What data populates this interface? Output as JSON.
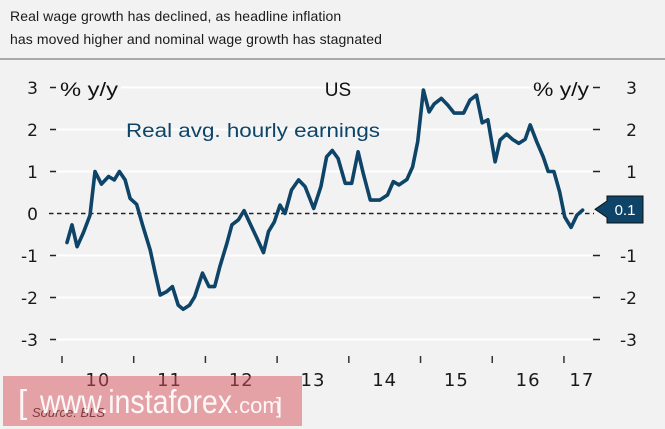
{
  "header": {
    "title_line1": "Real wage growth has declined, as headline inflation",
    "title_line2": "has moved higher and nominal wage growth has stagnated"
  },
  "chart_data": {
    "type": "line",
    "title": "US",
    "ylabel_left": "% y/y",
    "ylabel_right": "% y/y",
    "xlabel": "",
    "ylim": [
      -3,
      3
    ],
    "xlim": [
      2010,
      2017.5
    ],
    "yticks": [
      3,
      2,
      1,
      0,
      -1,
      -2,
      -3
    ],
    "ytick_labels": [
      "3",
      "2",
      "1",
      "0",
      "-1",
      "-2",
      "-3"
    ],
    "xticks": [
      2010,
      2011,
      2012,
      2013,
      2014,
      2015,
      2016,
      2017
    ],
    "xtick_labels": [
      "10",
      "11",
      "12",
      "13",
      "14",
      "15",
      "16",
      "17"
    ],
    "xtick_label_positions": [
      2010.5,
      2011.5,
      2012.5,
      2013.5,
      2014.5,
      2015.5,
      2016.5,
      2017.25
    ],
    "grid": true,
    "reference_line": {
      "value": 0,
      "style": "dashed"
    },
    "legend_placement": "top-left",
    "series": [
      {
        "name": "Real avg. hourly earnings",
        "color": "#0d4468",
        "points": [
          [
            2010.07,
            -0.69
          ],
          [
            2010.14,
            -0.27
          ],
          [
            2010.21,
            -0.79
          ],
          [
            2010.3,
            -0.45
          ],
          [
            2010.39,
            -0.04
          ],
          [
            2010.46,
            1.0
          ],
          [
            2010.55,
            0.7
          ],
          [
            2010.65,
            0.88
          ],
          [
            2010.73,
            0.8
          ],
          [
            2010.8,
            1.0
          ],
          [
            2010.88,
            0.8
          ],
          [
            2010.95,
            0.36
          ],
          [
            2011.04,
            0.22
          ],
          [
            2011.13,
            -0.31
          ],
          [
            2011.23,
            -0.87
          ],
          [
            2011.3,
            -1.42
          ],
          [
            2011.37,
            -1.94
          ],
          [
            2011.46,
            -1.86
          ],
          [
            2011.54,
            -1.74
          ],
          [
            2011.62,
            -2.18
          ],
          [
            2011.69,
            -2.28
          ],
          [
            2011.78,
            -2.18
          ],
          [
            2011.85,
            -1.98
          ],
          [
            2011.96,
            -1.42
          ],
          [
            2012.05,
            -1.74
          ],
          [
            2012.13,
            -1.74
          ],
          [
            2012.2,
            -1.27
          ],
          [
            2012.3,
            -0.71
          ],
          [
            2012.37,
            -0.27
          ],
          [
            2012.46,
            -0.15
          ],
          [
            2012.54,
            0.07
          ],
          [
            2012.62,
            -0.23
          ],
          [
            2012.72,
            -0.59
          ],
          [
            2012.81,
            -0.93
          ],
          [
            2012.88,
            -0.43
          ],
          [
            2012.96,
            -0.2
          ],
          [
            2013.04,
            0.2
          ],
          [
            2013.11,
            0.0
          ],
          [
            2013.2,
            0.56
          ],
          [
            2013.3,
            0.8
          ],
          [
            2013.39,
            0.64
          ],
          [
            2013.51,
            0.12
          ],
          [
            2013.61,
            0.64
          ],
          [
            2013.69,
            1.35
          ],
          [
            2013.77,
            1.5
          ],
          [
            2013.85,
            1.31
          ],
          [
            2013.95,
            0.72
          ],
          [
            2014.04,
            0.72
          ],
          [
            2014.13,
            1.47
          ],
          [
            2014.2,
            0.96
          ],
          [
            2014.3,
            0.32
          ],
          [
            2014.43,
            0.32
          ],
          [
            2014.54,
            0.44
          ],
          [
            2014.62,
            0.76
          ],
          [
            2014.7,
            0.68
          ],
          [
            2014.81,
            0.81
          ],
          [
            2014.89,
            1.11
          ],
          [
            2014.96,
            1.71
          ],
          [
            2015.04,
            2.94
          ],
          [
            2015.12,
            2.42
          ],
          [
            2015.19,
            2.61
          ],
          [
            2015.29,
            2.74
          ],
          [
            2015.38,
            2.58
          ],
          [
            2015.47,
            2.39
          ],
          [
            2015.6,
            2.39
          ],
          [
            2015.69,
            2.7
          ],
          [
            2015.78,
            2.82
          ],
          [
            2015.86,
            2.16
          ],
          [
            2015.94,
            2.23
          ],
          [
            2016.04,
            1.23
          ],
          [
            2016.11,
            1.75
          ],
          [
            2016.2,
            1.89
          ],
          [
            2016.28,
            1.77
          ],
          [
            2016.37,
            1.67
          ],
          [
            2016.46,
            1.77
          ],
          [
            2016.53,
            2.11
          ],
          [
            2016.62,
            1.71
          ],
          [
            2016.71,
            1.35
          ],
          [
            2016.78,
            1.0
          ],
          [
            2016.86,
            1.0
          ],
          [
            2016.94,
            0.52
          ],
          [
            2017.01,
            -0.08
          ],
          [
            2017.1,
            -0.33
          ],
          [
            2017.18,
            -0.04
          ],
          [
            2017.26,
            0.08
          ]
        ]
      }
    ],
    "last_value_callout": {
      "label": "0.1",
      "value": 0.1
    },
    "source": "Source: BLS"
  },
  "watermark": {
    "bracket_open": "[",
    "main": "www.instaforex",
    "suffix": ".com",
    "bracket_close": "]"
  },
  "colors": {
    "background": "#f2f2f2",
    "series_line": "#0d4468",
    "callout_fill": "#0d4468",
    "gridline": "#ffffff",
    "zero_line": "#222222",
    "header_rule": "#a9a9a9",
    "watermark_fill": "#d6505a"
  }
}
